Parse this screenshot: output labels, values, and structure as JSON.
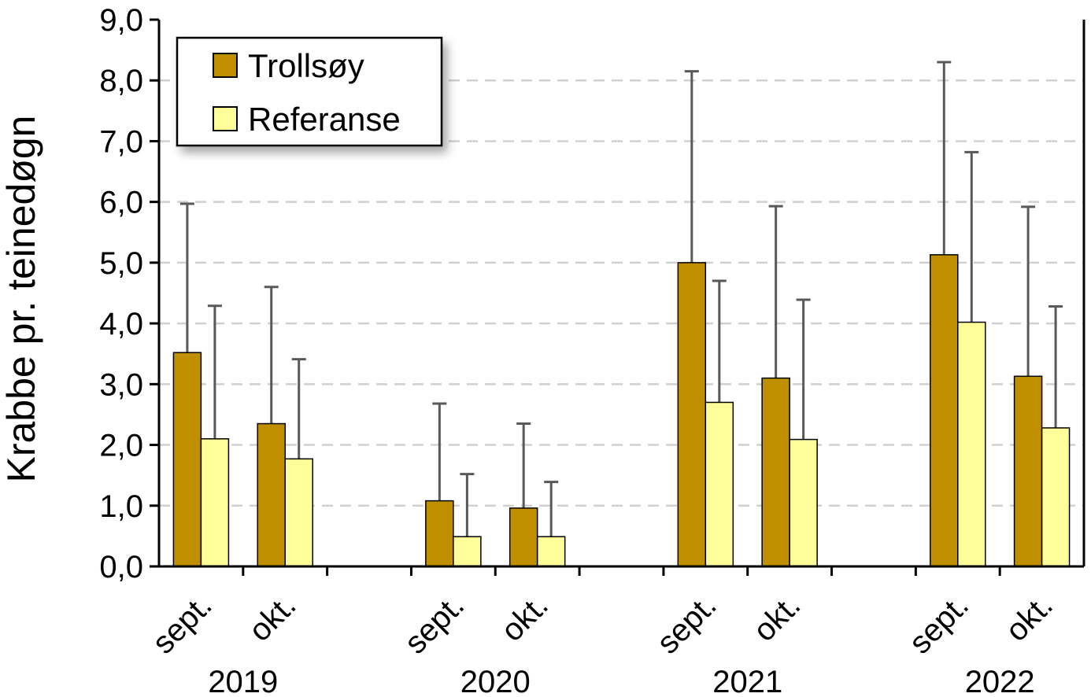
{
  "chart_data": {
    "type": "bar",
    "title": "",
    "ylabel": "Krabbe pr. teinedøgn",
    "xlabel": "",
    "ylim": [
      0,
      9
    ],
    "ytick_step": 1,
    "ytick_labels": [
      "0,0",
      "1,0",
      "2,0",
      "3,0",
      "4,0",
      "5,0",
      "6,0",
      "7,0",
      "8,0",
      "9,0"
    ],
    "grid": "horizontal-dashed",
    "legend_position": "top-left",
    "groups": [
      {
        "year": "2019",
        "months": [
          "sept.",
          "okt."
        ]
      },
      {
        "year": "2020",
        "months": [
          "sept.",
          "okt."
        ]
      },
      {
        "year": "2021",
        "months": [
          "sept.",
          "okt."
        ]
      },
      {
        "year": "2022",
        "months": [
          "sept.",
          "okt."
        ]
      }
    ],
    "categories": [
      "2019 sept.",
      "2019 okt.",
      "2020 sept.",
      "2020 okt.",
      "2021 sept.",
      "2021 okt.",
      "2022 sept.",
      "2022 okt."
    ],
    "series": [
      {
        "name": "Trollsøy",
        "color": "#bf8f00",
        "values": [
          3.52,
          2.35,
          1.08,
          0.96,
          5.0,
          3.1,
          5.13,
          3.13
        ],
        "error_upper": [
          5.97,
          4.6,
          2.68,
          2.35,
          8.15,
          5.93,
          8.3,
          5.92
        ]
      },
      {
        "name": "Referanse",
        "color": "#ffff99",
        "values": [
          2.1,
          1.77,
          0.49,
          0.49,
          2.7,
          2.09,
          4.02,
          2.28
        ],
        "error_upper": [
          4.29,
          3.41,
          1.52,
          1.39,
          4.7,
          4.39,
          6.82,
          4.28
        ]
      }
    ]
  }
}
